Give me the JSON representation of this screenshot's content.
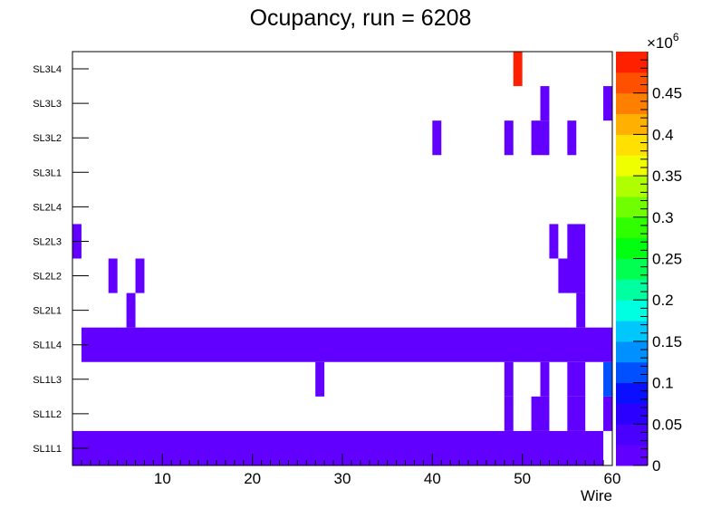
{
  "chart_data": {
    "type": "heatmap",
    "title": "Ocupancy, run = 6208",
    "xlabel": "Wire",
    "ylabel": "",
    "xlim": [
      0,
      60
    ],
    "x_ticks": [
      "10",
      "20",
      "30",
      "40",
      "50",
      "60"
    ],
    "x_tick_values": [
      10,
      20,
      30,
      40,
      50,
      60
    ],
    "rows": [
      "SL1L1",
      "SL1L2",
      "SL1L3",
      "SL1L4",
      "SL2L1",
      "SL2L2",
      "SL2L3",
      "SL2L4",
      "SL3L1",
      "SL3L2",
      "SL3L3",
      "SL3L4"
    ],
    "colorbar": {
      "exponent_label": "×10",
      "exponent": "6",
      "range": [
        0,
        500000
      ],
      "tick_labels": [
        "0",
        "0.05",
        "0.1",
        "0.15",
        "0.2",
        "0.25",
        "0.3",
        "0.35",
        "0.4",
        "0.45"
      ],
      "tick_values": [
        0,
        0.05,
        0.1,
        0.15,
        0.2,
        0.25,
        0.3,
        0.35,
        0.4,
        0.45
      ],
      "colors": [
        "#6100ff",
        "#4a00ff",
        "#2b00ff",
        "#0a10ff",
        "#0050ff",
        "#0090ff",
        "#00c8ff",
        "#00ffe0",
        "#00ffa0",
        "#00ff50",
        "#00ff10",
        "#30ff00",
        "#70ff00",
        "#b0ff00",
        "#f0ff00",
        "#ffe000",
        "#ffb000",
        "#ff8000",
        "#ff5000",
        "#ff2000"
      ]
    },
    "cells": [
      {
        "row": "SL1L1",
        "from": 0,
        "to": 59,
        "value": 5000
      },
      {
        "row": "SL1L2",
        "from": 48,
        "to": 49,
        "value": 5000
      },
      {
        "row": "SL1L2",
        "from": 51,
        "to": 53,
        "value": 5000
      },
      {
        "row": "SL1L2",
        "from": 55,
        "to": 57,
        "value": 5000
      },
      {
        "row": "SL1L2",
        "from": 59,
        "to": 60,
        "value": 5000
      },
      {
        "row": "SL1L3",
        "from": 27,
        "to": 28,
        "value": 5000
      },
      {
        "row": "SL1L3",
        "from": 48,
        "to": 49,
        "value": 5000
      },
      {
        "row": "SL1L3",
        "from": 52,
        "to": 53,
        "value": 5000
      },
      {
        "row": "SL1L3",
        "from": 55,
        "to": 57,
        "value": 5000
      },
      {
        "row": "SL1L3",
        "from": 59,
        "to": 60,
        "value": 110000
      },
      {
        "row": "SL1L4",
        "from": 1,
        "to": 60,
        "value": 5000
      },
      {
        "row": "SL2L1",
        "from": 6,
        "to": 7,
        "value": 5000
      },
      {
        "row": "SL2L1",
        "from": 56,
        "to": 57,
        "value": 5000
      },
      {
        "row": "SL2L2",
        "from": 4,
        "to": 5,
        "value": 5000
      },
      {
        "row": "SL2L2",
        "from": 7,
        "to": 8,
        "value": 5000
      },
      {
        "row": "SL2L2",
        "from": 54,
        "to": 57,
        "value": 5000
      },
      {
        "row": "SL2L3",
        "from": 0,
        "to": 1,
        "value": 5000
      },
      {
        "row": "SL2L3",
        "from": 53,
        "to": 54,
        "value": 5000
      },
      {
        "row": "SL2L3",
        "from": 55,
        "to": 57,
        "value": 5000
      },
      {
        "row": "SL3L2",
        "from": 40,
        "to": 41,
        "value": 5000
      },
      {
        "row": "SL3L2",
        "from": 48,
        "to": 49,
        "value": 5000
      },
      {
        "row": "SL3L2",
        "from": 51,
        "to": 53,
        "value": 5000
      },
      {
        "row": "SL3L2",
        "from": 55,
        "to": 56,
        "value": 5000
      },
      {
        "row": "SL3L3",
        "from": 52,
        "to": 53,
        "value": 5000
      },
      {
        "row": "SL3L3",
        "from": 59,
        "to": 60,
        "value": 5000
      },
      {
        "row": "SL3L4",
        "from": 49,
        "to": 50,
        "value": 480000
      }
    ]
  }
}
